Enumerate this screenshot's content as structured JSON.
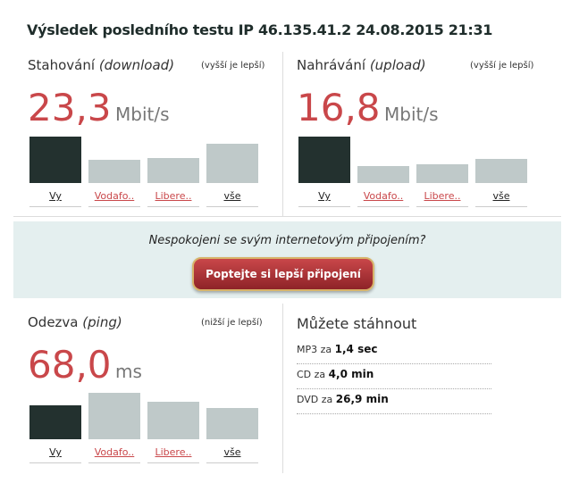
{
  "title": "Výsledek posledního testu IP 46.135.41.2 24.08.2015 21:31",
  "panels": [
    {
      "label": "Stahování",
      "label_note": "(download)",
      "hint": "(vyšší je lepší)",
      "value": "23,3",
      "unit": "Mbit/s",
      "bars": [
        {
          "label": "Vy",
          "value": 23.3
        },
        {
          "label": "Vodafo..",
          "value": 11.6
        },
        {
          "label": "Libere..",
          "value": 12.6
        },
        {
          "label": "vše",
          "value": 19.6
        }
      ]
    },
    {
      "label": "Nahrávání",
      "label_note": "(upload)",
      "hint": "(vyšší je lepší)",
      "value": "16,8",
      "unit": "Mbit/s",
      "bars": [
        {
          "label": "Vy",
          "value": 16.8
        },
        {
          "label": "Vodafo..",
          "value": 6.0
        },
        {
          "label": "Libere..",
          "value": 6.7
        },
        {
          "label": "vše",
          "value": 8.7
        }
      ]
    },
    {
      "label": "Odezva",
      "label_note": "(ping)",
      "hint": "(nižší je lepší)",
      "value": "68,0",
      "unit": "ms",
      "bars": [
        {
          "label": "Vy",
          "value": 68
        },
        {
          "label": "Vodafo..",
          "value": 93
        },
        {
          "label": "Libere..",
          "value": 75
        },
        {
          "label": "vše",
          "value": 63
        }
      ]
    }
  ],
  "promo": {
    "text": "Nespokojeni se svým internetovým připojením?",
    "button": "Poptejte si lepší připojení"
  },
  "downloads": {
    "title": "Můžete stáhnout",
    "rows": [
      {
        "item": "MP3 za",
        "time": "1,4 sec"
      },
      {
        "item": "CD za",
        "time": "4,0 min"
      },
      {
        "item": "DVD za",
        "time": "26,9 min"
      }
    ]
  }
}
